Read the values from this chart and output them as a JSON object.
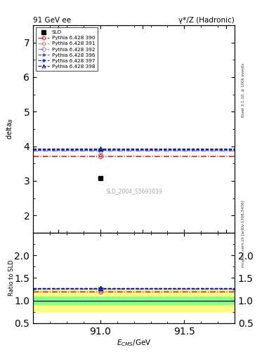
{
  "title_left": "91 GeV ee",
  "title_right": "γ*/Z (Hadronic)",
  "ylabel_main": "delta$_B$",
  "ylabel_ratio": "Ratio to SLD",
  "xlabel": "$E_{CMS}$/GeV",
  "right_label_top": "Rivet 3.1.10, ≥ 100k events",
  "right_label_bottom": "mcplots.cern.ch [arXiv:1306.3436]",
  "watermark": "SLD_2004_S5693039",
  "xlim": [
    90.6,
    91.8
  ],
  "ylim_main": [
    1.5,
    7.5
  ],
  "ylim_ratio": [
    0.5,
    2.5
  ],
  "data_x": 91.0,
  "data_y": 3.08,
  "mc_lines": [
    {
      "label": "Pythia 6.428 390",
      "y": 3.7,
      "color": "#cc2222",
      "linestyle": "-.",
      "marker": "o",
      "mfc": "none"
    },
    {
      "label": "Pythia 6.428 391",
      "y": 3.72,
      "color": "#cc8888",
      "linestyle": "-.",
      "marker": "s",
      "mfc": "none"
    },
    {
      "label": "Pythia 6.428 392",
      "y": 3.88,
      "color": "#8888cc",
      "linestyle": "-.",
      "marker": "D",
      "mfc": "none"
    },
    {
      "label": "Pythia 6.428 396",
      "y": 3.9,
      "color": "#4455bb",
      "linestyle": "--",
      "marker": "*",
      "mfc": "none"
    },
    {
      "label": "Pythia 6.428 397",
      "y": 3.91,
      "color": "#2233aa",
      "linestyle": "--",
      "marker": "*",
      "mfc": "none"
    },
    {
      "label": "Pythia 6.428 398",
      "y": 3.93,
      "color": "#001188",
      "linestyle": "--",
      "marker": "^",
      "mfc": "none"
    }
  ],
  "ratio_lines": [
    {
      "y": 1.2,
      "color": "#cc2222",
      "linestyle": "-."
    },
    {
      "y": 1.21,
      "color": "#cc8888",
      "linestyle": "-."
    },
    {
      "y": 1.26,
      "color": "#8888cc",
      "linestyle": "-."
    },
    {
      "y": 1.265,
      "color": "#4455bb",
      "linestyle": "--"
    },
    {
      "y": 1.27,
      "color": "#2233aa",
      "linestyle": "--"
    },
    {
      "y": 1.275,
      "color": "#001188",
      "linestyle": "--"
    }
  ],
  "green_band_half": 0.08,
  "yellow_band_half": 0.25,
  "tick_major_main": [
    2,
    3,
    4,
    5,
    6,
    7
  ],
  "tick_minor_main": [
    1.5,
    2.5,
    3.5,
    4.5,
    5.5,
    6.5,
    7.5
  ],
  "tick_major_ratio": [
    0.5,
    1.0,
    1.5,
    2.0
  ],
  "tick_minor_ratio": [
    0.75,
    1.25,
    1.75,
    2.25
  ]
}
